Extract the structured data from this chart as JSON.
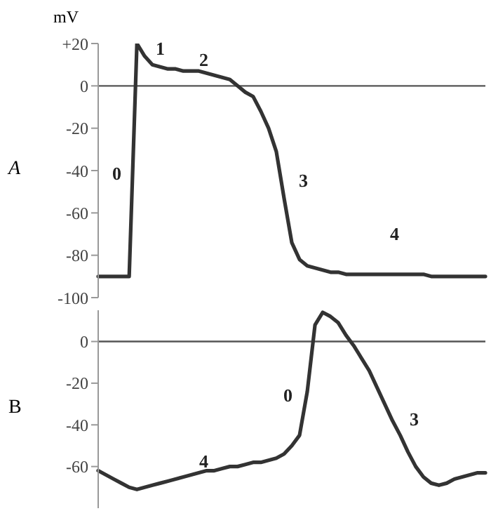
{
  "chart_data": [
    {
      "type": "line",
      "title": "A",
      "ylabel": "mV",
      "categories": [
        null,
        null,
        null,
        null,
        null,
        null,
        null,
        null,
        null,
        null,
        null,
        null,
        null,
        null,
        null,
        null,
        null,
        null,
        null,
        null,
        null,
        null,
        null,
        null,
        null,
        null,
        null,
        null,
        null,
        null,
        null,
        null,
        null,
        null,
        null,
        null,
        null,
        null,
        null,
        null,
        null,
        null,
        null,
        null,
        null,
        null,
        null,
        null,
        null,
        null,
        null
      ],
      "ylim": [
        -100,
        20
      ],
      "tick_labels": "y",
      "yticks": [
        {
          "value": 20,
          "label": "+20"
        },
        0,
        -20,
        -40,
        -60,
        -80,
        -100
      ],
      "marker": "none",
      "line_style": "solid",
      "series": [
        {
          "color": "#333333",
          "values": [
            -90,
            -90,
            -90,
            -90,
            -90,
            20,
            14,
            10,
            9,
            8,
            8,
            7,
            7,
            7,
            6,
            5,
            4,
            3,
            0,
            -3,
            -5,
            -12,
            -20,
            -31,
            -53,
            -74,
            -82,
            -85,
            -86,
            -87,
            -88,
            -88,
            -89,
            -89,
            -89,
            -89,
            -89,
            -89,
            -89,
            -89,
            -89,
            -89,
            -89,
            -90,
            -90,
            -90,
            -90,
            -90,
            -90,
            -90,
            -90
          ]
        }
      ],
      "ref_lines": [
        {
          "axis": "y",
          "value": 0,
          "color": "#555555"
        }
      ],
      "annotations": [
        "0",
        "1",
        "2",
        "3",
        "4"
      ]
    },
    {
      "type": "line",
      "title": "B",
      "categories": [
        null,
        null,
        null,
        null,
        null,
        null,
        null,
        null,
        null,
        null,
        null,
        null,
        null,
        null,
        null,
        null,
        null,
        null,
        null,
        null,
        null,
        null,
        null,
        null,
        null,
        null,
        null,
        null,
        null,
        null,
        null,
        null,
        null,
        null,
        null,
        null,
        null,
        null,
        null,
        null,
        null,
        null,
        null,
        null,
        null,
        null,
        null,
        null,
        null,
        null,
        null
      ],
      "ylim": [
        -80,
        15
      ],
      "tick_labels": "y",
      "yticks": [
        0,
        -20,
        -40,
        -60
      ],
      "marker": "none",
      "line_style": "solid",
      "series": [
        {
          "color": "#333333",
          "values": [
            -62,
            -64,
            -66,
            -68,
            -70,
            -71,
            -70,
            -69,
            -68,
            -67,
            -66,
            -65,
            -64,
            -63,
            -62,
            -62,
            -61,
            -60,
            -60,
            -59,
            -58,
            -58,
            -57,
            -56,
            -54,
            -50,
            -45,
            -24,
            8,
            14,
            12,
            9,
            3,
            -2,
            -8,
            -14,
            -22,
            -30,
            -38,
            -45,
            -53,
            -60,
            -65,
            -68,
            -69,
            -68,
            -66,
            -65,
            -64,
            -63,
            -63
          ]
        }
      ],
      "ref_lines": [
        {
          "axis": "y",
          "value": 0,
          "color": "#555555"
        }
      ],
      "annotations": [
        "4",
        "0",
        "3"
      ]
    }
  ]
}
